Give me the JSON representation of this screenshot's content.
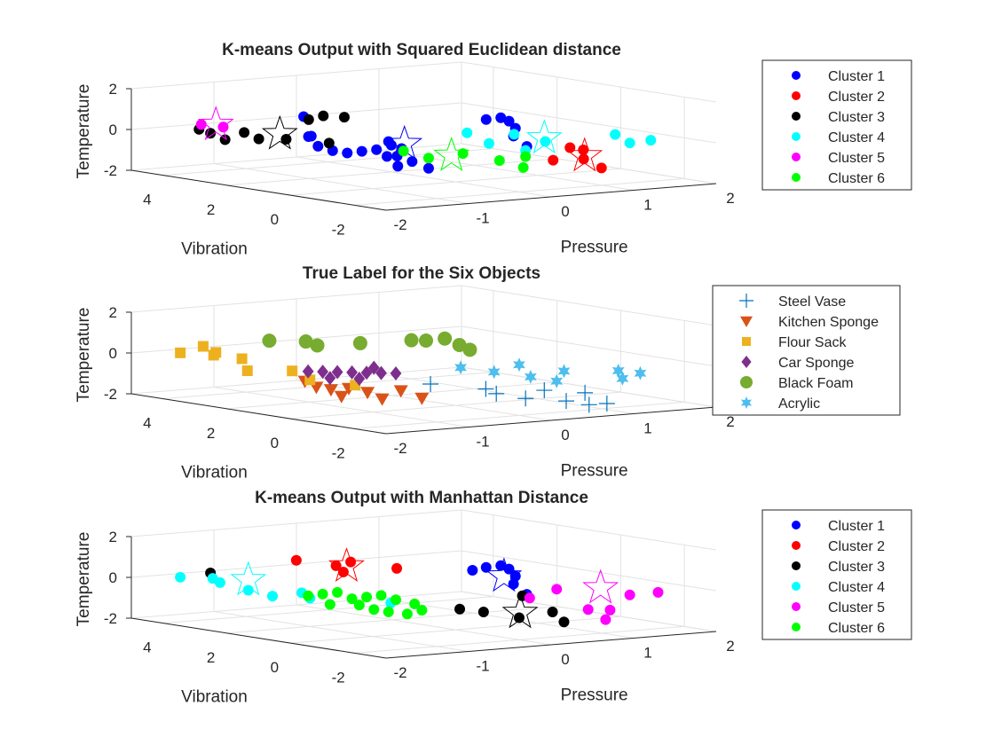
{
  "chart_data": [
    {
      "type": "scatter",
      "title": "K-means Output with Squared Euclidean distance",
      "xlabel": "Pressure",
      "ylabel": "Vibration",
      "zlabel": "Temperature",
      "xlim": [
        -2,
        2
      ],
      "ylim": [
        -3,
        5
      ],
      "zlim": [
        -2,
        2
      ],
      "xticks": [
        "-2",
        "-1",
        "0",
        "1",
        "2"
      ],
      "yticks": [
        "-2",
        "0",
        "2",
        "4"
      ],
      "zticks": [
        "-2",
        "0",
        "2"
      ],
      "grid": true,
      "legend_position": "top-right",
      "series": [
        {
          "name": "Cluster 1",
          "color": "#0000ff",
          "marker": "circle",
          "points": [
            [
              -1.05,
              1.6,
              -0.3
            ],
            [
              -0.95,
              1.4,
              -0.5
            ],
            [
              -0.85,
              1.2,
              -0.6
            ],
            [
              -0.75,
              1.0,
              -0.5
            ],
            [
              -0.65,
              0.8,
              -0.4
            ],
            [
              -0.9,
              2.2,
              0.0
            ],
            [
              -0.6,
              0.6,
              -0.7
            ],
            [
              -0.5,
              0.4,
              -0.3
            ],
            [
              -0.45,
              0.2,
              -0.9
            ],
            [
              -0.25,
              0.2,
              -1.3
            ],
            [
              -0.2,
              1.5,
              -0.5
            ],
            [
              -0.35,
              1.2,
              -0.2
            ],
            [
              0.1,
              -0.7,
              1.2
            ],
            [
              0.2,
              -0.9,
              1.3
            ],
            [
              0.3,
              -0.9,
              1.1
            ],
            [
              0.3,
              -1.1,
              0.8
            ],
            [
              0.2,
              -1.3,
              0.5
            ],
            [
              0.4,
              -1.2,
              -0.1
            ],
            [
              -1.05,
              1.9,
              0.1
            ],
            [
              -0.8,
              2.7,
              0.8
            ],
            [
              -0.7,
              0.0,
              -1.0
            ],
            [
              -0.4,
              0.8,
              -0.8
            ]
          ],
          "centroids": [
            [
              -0.35,
              0.7,
              -0.2
            ]
          ]
        },
        {
          "name": "Cluster 2",
          "color": "#ff0000",
          "marker": "circle",
          "points": [
            [
              1.0,
              -1.0,
              -0.4
            ],
            [
              1.05,
              -1.3,
              -0.9
            ],
            [
              1.15,
              -1.6,
              -1.3
            ],
            [
              0.95,
              -0.6,
              -1.1
            ],
            [
              1.2,
              -0.9,
              -0.6
            ]
          ],
          "centroids": [
            [
              1.1,
              -1.2,
              -0.8
            ]
          ]
        },
        {
          "name": "Cluster 3",
          "color": "#000000",
          "marker": "circle",
          "points": [
            [
              -1.45,
              4.3,
              0.0
            ],
            [
              -1.35,
              4.2,
              -0.2
            ],
            [
              -1.25,
              3.4,
              0.0
            ],
            [
              -1.15,
              3.2,
              -0.3
            ],
            [
              -1.05,
              2.6,
              -0.2
            ],
            [
              -0.7,
              2.8,
              0.6
            ],
            [
              -0.6,
              2.6,
              0.8
            ],
            [
              -0.5,
              2.2,
              0.8
            ],
            [
              -1.25,
              4.0,
              -0.5
            ],
            [
              -0.8,
              1.9,
              -0.3
            ]
          ],
          "centroids": [
            [
              -1.05,
              2.8,
              0.0
            ]
          ]
        },
        {
          "name": "Cluster 4",
          "color": "#00ffff",
          "marker": "circle",
          "points": [
            [
              0.1,
              -0.1,
              0.4
            ],
            [
              0.25,
              -0.4,
              -0.1
            ],
            [
              0.4,
              -0.8,
              0.4
            ],
            [
              0.5,
              -0.9,
              -0.4
            ],
            [
              0.7,
              -1.0,
              0.0
            ],
            [
              1.2,
              -1.9,
              0.4
            ],
            [
              1.3,
              -2.1,
              0.0
            ],
            [
              1.4,
              -2.5,
              0.2
            ]
          ],
          "centroids": [
            [
              0.65,
              -1.1,
              0.2
            ]
          ]
        },
        {
          "name": "Cluster 5",
          "color": "#ff00ff",
          "marker": "circle",
          "points": [
            [
              -1.5,
              4.1,
              0.3
            ],
            [
              -1.35,
              3.8,
              0.2
            ]
          ],
          "centroids": [
            [
              -1.4,
              3.9,
              0.3
            ]
          ]
        },
        {
          "name": "Cluster 6",
          "color": "#00ff00",
          "marker": "circle",
          "points": [
            [
              -0.4,
              0.6,
              -0.5
            ],
            [
              -0.25,
              0.2,
              -0.8
            ],
            [
              0.05,
              -0.1,
              -0.6
            ],
            [
              0.3,
              -0.6,
              -0.9
            ],
            [
              0.5,
              -0.9,
              -0.7
            ],
            [
              0.55,
              -0.7,
              -1.3
            ]
          ],
          "centroids": [
            [
              -0.05,
              0.0,
              -0.7
            ]
          ]
        }
      ]
    },
    {
      "type": "scatter",
      "title": "True Label for the Six Objects",
      "xlabel": "Pressure",
      "ylabel": "Vibration",
      "zlabel": "Temperature",
      "xlim": [
        -2,
        2
      ],
      "ylim": [
        -3,
        5
      ],
      "zlim": [
        -2,
        2
      ],
      "xticks": [
        "-2",
        "-1",
        "0",
        "1",
        "2"
      ],
      "yticks": [
        "-2",
        "0",
        "2",
        "4"
      ],
      "zticks": [
        "-2",
        "0",
        "2"
      ],
      "grid": true,
      "legend_position": "top-right",
      "series": [
        {
          "name": "Steel Vase",
          "color": "#0072bd",
          "marker": "plus",
          "points": [
            [
              -0.15,
              0.4,
              -1.0
            ],
            [
              0.25,
              -0.3,
              -1.2
            ],
            [
              0.3,
              -0.5,
              -1.4
            ],
            [
              0.5,
              -0.9,
              -1.6
            ],
            [
              0.65,
              -1.1,
              -1.2
            ],
            [
              0.8,
              -1.4,
              -1.7
            ],
            [
              0.95,
              -1.6,
              -1.3
            ],
            [
              1.0,
              -1.6,
              -1.9
            ],
            [
              1.1,
              -1.9,
              -1.8
            ]
          ]
        },
        {
          "name": "Kitchen Sponge",
          "color": "#d95319",
          "marker": "triangle-down",
          "points": [
            [
              -0.9,
              2.4,
              -1.1
            ],
            [
              -0.8,
              2.3,
              -1.4
            ],
            [
              -0.7,
              2.1,
              -1.5
            ],
            [
              -0.6,
              1.8,
              -1.4
            ],
            [
              -0.45,
              1.6,
              -1.6
            ],
            [
              -0.35,
              1.4,
              -1.9
            ],
            [
              -0.2,
              1.2,
              -1.5
            ],
            [
              -0.65,
              1.9,
              -1.8
            ],
            [
              -0.1,
              0.8,
              -1.8
            ]
          ]
        },
        {
          "name": "Flour Sack",
          "color": "#edb120",
          "marker": "square",
          "points": [
            [
              -1.6,
              4.5,
              0.0
            ],
            [
              -1.4,
              4.3,
              0.3
            ],
            [
              -1.35,
              4.1,
              -0.1
            ],
            [
              -1.2,
              3.6,
              -0.2
            ],
            [
              -1.25,
              3.3,
              -0.7
            ],
            [
              -0.9,
              2.8,
              -0.7
            ],
            [
              -0.8,
              2.5,
              -1.1
            ],
            [
              -0.6,
              1.6,
              -1.2
            ],
            [
              -1.4,
              3.9,
              0.1
            ]
          ]
        },
        {
          "name": "Car Sponge",
          "color": "#7e2f8e",
          "marker": "diamond",
          "points": [
            [
              -0.9,
              2.3,
              -0.6
            ],
            [
              -0.8,
              2.1,
              -0.6
            ],
            [
              -0.7,
              1.9,
              -0.6
            ],
            [
              -0.6,
              1.7,
              -0.6
            ],
            [
              -0.5,
              1.5,
              -0.6
            ],
            [
              -0.4,
              1.3,
              -0.6
            ],
            [
              -0.3,
              1.1,
              -0.6
            ],
            [
              -0.75,
              2.0,
              -0.9
            ],
            [
              -0.55,
              1.6,
              -0.9
            ],
            [
              -0.45,
              1.4,
              -0.35
            ]
          ]
        },
        {
          "name": "Black Foam",
          "color": "#77ac30",
          "marker": "circle-filled",
          "points": [
            [
              -1.1,
              3.0,
              0.8
            ],
            [
              -0.85,
              2.5,
              0.8
            ],
            [
              -0.75,
              2.4,
              0.6
            ],
            [
              -0.5,
              1.7,
              0.8
            ],
            [
              -0.15,
              1.0,
              1.0
            ],
            [
              -0.05,
              0.8,
              1.0
            ],
            [
              0.1,
              0.6,
              1.1
            ],
            [
              0.2,
              0.4,
              0.8
            ],
            [
              0.25,
              0.2,
              0.6
            ]
          ]
        },
        {
          "name": "Acrylic",
          "color": "#4dbeee",
          "marker": "hexagram",
          "points": [
            [
              0.1,
              0.1,
              -0.2
            ],
            [
              0.35,
              -0.3,
              -0.4
            ],
            [
              0.5,
              -0.7,
              0.0
            ],
            [
              0.6,
              -0.8,
              -0.6
            ],
            [
              0.8,
              -1.1,
              -0.8
            ],
            [
              0.85,
              -1.2,
              -0.3
            ],
            [
              1.2,
              -2.0,
              -0.2
            ],
            [
              1.35,
              -2.3,
              -0.3
            ],
            [
              1.25,
              -2.0,
              -0.6
            ]
          ]
        }
      ]
    },
    {
      "type": "scatter",
      "title": "K-means Output with Manhattan Distance",
      "xlabel": "Pressure",
      "ylabel": "Vibration",
      "zlabel": "Temperature",
      "xlim": [
        -2,
        2
      ],
      "ylim": [
        -3,
        5
      ],
      "zlim": [
        -2,
        2
      ],
      "xticks": [
        "-2",
        "-1",
        "0",
        "1",
        "2"
      ],
      "yticks": [
        "-2",
        "0",
        "2",
        "4"
      ],
      "zticks": [
        "-2",
        "0",
        "2"
      ],
      "grid": true,
      "legend_position": "top-right",
      "series": [
        {
          "name": "Cluster 1",
          "color": "#0000ff",
          "marker": "circle",
          "points": [
            [
              0.1,
              -0.7,
              1.2
            ],
            [
              0.2,
              -0.9,
              1.3
            ],
            [
              0.3,
              -0.9,
              1.1
            ],
            [
              0.3,
              -1.1,
              0.8
            ],
            [
              0.2,
              -1.3,
              0.5
            ],
            [
              0.4,
              -1.2,
              -0.1
            ],
            [
              0.05,
              -0.4,
              1.0
            ]
          ],
          "centroids": [
            [
              0.2,
              -1.0,
              0.8
            ]
          ]
        },
        {
          "name": "Cluster 2",
          "color": "#ff0000",
          "marker": "circle",
          "points": [
            [
              -0.85,
              2.8,
              1.0
            ],
            [
              -0.6,
              2.2,
              0.8
            ],
            [
              -0.5,
              2.0,
              1.0
            ],
            [
              -0.25,
              1.2,
              0.8
            ],
            [
              -0.55,
              2.1,
              0.5
            ]
          ],
          "centroids": [
            [
              -0.55,
              2.0,
              0.8
            ]
          ]
        },
        {
          "name": "Cluster 3",
          "color": "#000000",
          "marker": "circle",
          "points": [
            [
              -1.35,
              4.2,
              0.2
            ],
            [
              0.05,
              0.0,
              -1.0
            ],
            [
              0.5,
              -0.7,
              -1.4
            ],
            [
              0.75,
              -1.1,
              -1.1
            ],
            [
              0.85,
              -1.2,
              -1.6
            ],
            [
              0.3,
              -0.1,
              -1.2
            ],
            [
              0.5,
              -0.8,
              -0.3
            ]
          ],
          "centroids": [
            [
              0.55,
              -0.6,
              -1.2
            ]
          ]
        },
        {
          "name": "Cluster 4",
          "color": "#00ffff",
          "marker": "circle",
          "points": [
            [
              -1.6,
              4.5,
              0.0
            ],
            [
              -1.4,
              4.0,
              0.0
            ],
            [
              -1.35,
              3.9,
              -0.2
            ],
            [
              -1.2,
              3.4,
              -0.5
            ],
            [
              -1.1,
              2.9,
              -0.7
            ],
            [
              -0.4,
              1.0,
              -0.8
            ],
            [
              -0.8,
              2.5,
              -0.8
            ],
            [
              -0.9,
              2.5,
              -0.5
            ]
          ],
          "centroids": [
            [
              -1.2,
              3.4,
              0.0
            ]
          ]
        },
        {
          "name": "Cluster 5",
          "color": "#ff00ff",
          "marker": "circle",
          "points": [
            [
              0.55,
              -0.9,
              -0.4
            ],
            [
              0.8,
              -1.1,
              0.0
            ],
            [
              0.95,
              -1.7,
              -0.9
            ],
            [
              1.1,
              -2.0,
              -0.9
            ],
            [
              1.3,
              -2.1,
              -0.2
            ],
            [
              1.45,
              -2.6,
              0.0
            ],
            [
              1.2,
              -1.6,
              -1.5
            ]
          ],
          "centroids": [
            [
              1.1,
              -1.7,
              0.1
            ]
          ]
        },
        {
          "name": "Cluster 6",
          "color": "#00ff00",
          "marker": "circle",
          "points": [
            [
              -0.9,
              2.3,
              -0.6
            ],
            [
              -0.8,
              2.1,
              -0.5
            ],
            [
              -0.7,
              1.9,
              -0.4
            ],
            [
              -0.6,
              1.7,
              -0.7
            ],
            [
              -0.5,
              1.5,
              -0.6
            ],
            [
              -0.4,
              1.3,
              -0.5
            ],
            [
              -0.3,
              1.1,
              -0.7
            ],
            [
              -0.75,
              2.0,
              -1.0
            ],
            [
              -0.55,
              1.6,
              -1.0
            ],
            [
              -0.45,
              1.4,
              -1.2
            ],
            [
              -0.35,
              1.2,
              -1.3
            ],
            [
              -0.2,
              1.0,
              -1.4
            ],
            [
              -0.1,
              0.8,
              -1.2
            ],
            [
              -0.15,
              0.9,
              -0.9
            ]
          ]
        }
      ]
    }
  ]
}
